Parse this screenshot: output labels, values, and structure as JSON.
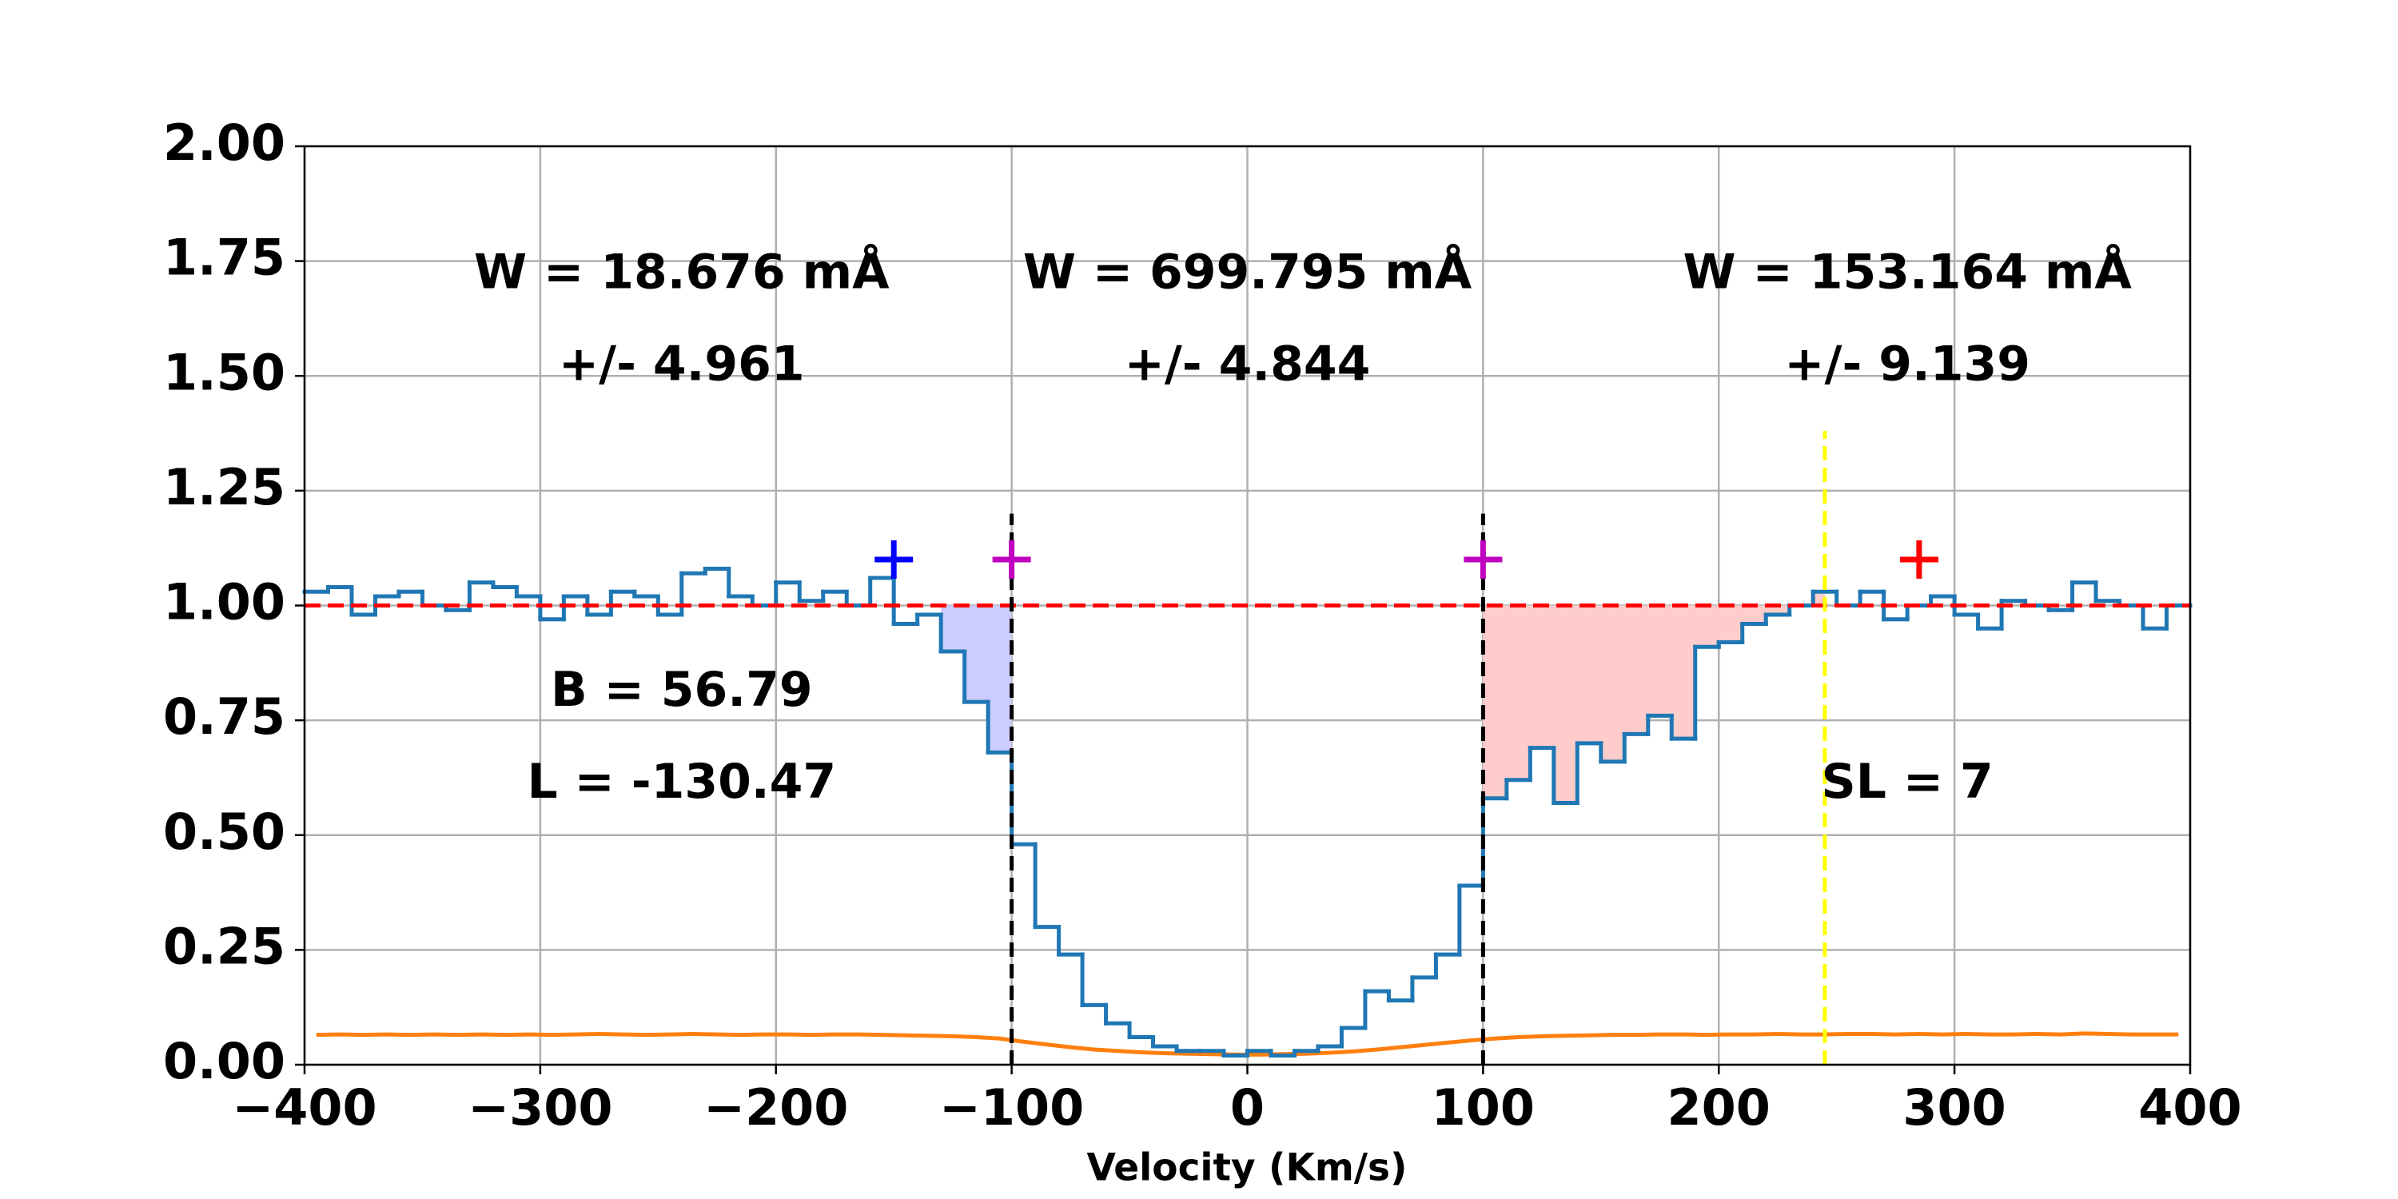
{
  "chart_data": {
    "type": "step",
    "x_label": "Velocity (Km/s)",
    "xlim": [
      -400,
      400
    ],
    "ylim": [
      0,
      2
    ],
    "xticks": [
      {
        "value": -400,
        "label": "−400"
      },
      {
        "value": -300,
        "label": "−300"
      },
      {
        "value": -200,
        "label": "−200"
      },
      {
        "value": -100,
        "label": "−100"
      },
      0,
      100,
      200,
      300,
      400
    ],
    "yticks": [
      {
        "value": 0,
        "label": "0.00"
      },
      {
        "value": 0.25,
        "label": "0.25"
      },
      {
        "value": 0.5,
        "label": "0.50"
      },
      {
        "value": 0.75,
        "label": "0.75"
      },
      {
        "value": 1,
        "label": "1.00"
      },
      {
        "value": 1.25,
        "label": "1.25"
      },
      {
        "value": 1.5,
        "label": "1.50"
      },
      {
        "value": 1.75,
        "label": "1.75"
      },
      {
        "value": 2,
        "label": "2.00"
      }
    ],
    "grid": true,
    "x": [
      -395,
      -385,
      -375,
      -365,
      -355,
      -345,
      -335,
      -325,
      -315,
      -305,
      -295,
      -285,
      -275,
      -265,
      -255,
      -245,
      -235,
      -225,
      -215,
      -205,
      -195,
      -185,
      -175,
      -165,
      -155,
      -145,
      -135,
      -125,
      -115,
      -105,
      -95,
      -85,
      -75,
      -65,
      -55,
      -45,
      -35,
      -25,
      -15,
      -5,
      5,
      15,
      25,
      35,
      45,
      55,
      65,
      75,
      85,
      95,
      105,
      115,
      125,
      135,
      145,
      155,
      165,
      175,
      185,
      195,
      205,
      215,
      225,
      235,
      245,
      255,
      265,
      275,
      285,
      295,
      305,
      315,
      325,
      335,
      345,
      355,
      365,
      375,
      385,
      395
    ],
    "series": [
      {
        "color": "#1f77b4",
        "values": [
          1.03,
          1.04,
          0.98,
          1.02,
          1.03,
          1.0,
          0.99,
          1.05,
          1.04,
          1.02,
          0.97,
          1.02,
          0.98,
          1.03,
          1.02,
          0.98,
          1.07,
          1.08,
          1.02,
          1.0,
          1.05,
          1.01,
          1.03,
          1.0,
          1.06,
          0.96,
          0.98,
          0.9,
          0.79,
          0.68,
          0.48,
          0.3,
          0.24,
          0.13,
          0.09,
          0.06,
          0.04,
          0.03,
          0.03,
          0.02,
          0.03,
          0.02,
          0.03,
          0.04,
          0.08,
          0.16,
          0.14,
          0.19,
          0.24,
          0.39,
          0.58,
          0.62,
          0.69,
          0.57,
          0.7,
          0.66,
          0.72,
          0.76,
          0.71,
          0.91,
          0.92,
          0.96,
          0.98,
          1.0,
          1.03,
          1.0,
          1.03,
          0.97,
          1.0,
          1.02,
          0.98,
          0.95,
          1.01,
          1.0,
          0.99,
          1.05,
          1.01,
          1.0,
          0.95,
          1.0
        ]
      },
      {
        "color": "#ff7f0e",
        "values": [
          0.065,
          0.066,
          0.065,
          0.066,
          0.065,
          0.066,
          0.065,
          0.066,
          0.065,
          0.066,
          0.065,
          0.066,
          0.067,
          0.066,
          0.065,
          0.066,
          0.067,
          0.066,
          0.065,
          0.066,
          0.066,
          0.065,
          0.066,
          0.066,
          0.065,
          0.064,
          0.063,
          0.062,
          0.06,
          0.057,
          0.05,
          0.044,
          0.038,
          0.033,
          0.03,
          0.027,
          0.025,
          0.024,
          0.023,
          0.022,
          0.022,
          0.023,
          0.024,
          0.026,
          0.029,
          0.033,
          0.038,
          0.043,
          0.048,
          0.053,
          0.057,
          0.06,
          0.062,
          0.063,
          0.064,
          0.065,
          0.065,
          0.066,
          0.066,
          0.065,
          0.066,
          0.066,
          0.067,
          0.066,
          0.066,
          0.067,
          0.067,
          0.066,
          0.067,
          0.066,
          0.067,
          0.066,
          0.066,
          0.067,
          0.066,
          0.068,
          0.067,
          0.066,
          0.066,
          0.066
        ]
      }
    ],
    "continuum": {
      "value": 1.0,
      "color": "#ff0000"
    },
    "shaded_regions": [
      {
        "xlim": [
          -130,
          -100
        ],
        "color": "#ccccff"
      },
      {
        "xlim": [
          100,
          245
        ],
        "color": "#ffcccc"
      }
    ],
    "vlines": [
      {
        "x": -100,
        "ymax": 1.2,
        "color": "#000000"
      },
      {
        "x": 100,
        "ymax": 1.2,
        "color": "#000000"
      },
      {
        "x": 245,
        "ymax": 1.38,
        "color": "#ffff00"
      }
    ],
    "markers": [
      {
        "x": -150,
        "y": 1.1,
        "color": "#0000ff"
      },
      {
        "x": -100,
        "y": 1.1,
        "color": "#bf00bf"
      },
      {
        "x": 100,
        "y": 1.1,
        "color": "#bf00bf"
      },
      {
        "x": 285,
        "y": 1.1,
        "color": "#ff0000"
      }
    ],
    "annotations": [
      "W = 18.676 mÅ",
      "+/- 4.961",
      "W = 699.795 mÅ",
      "+/- 4.844",
      "W = 153.164 mÅ",
      "+/- 9.139",
      "B = 56.79",
      "L = -130.47",
      "SL = 7"
    ]
  }
}
